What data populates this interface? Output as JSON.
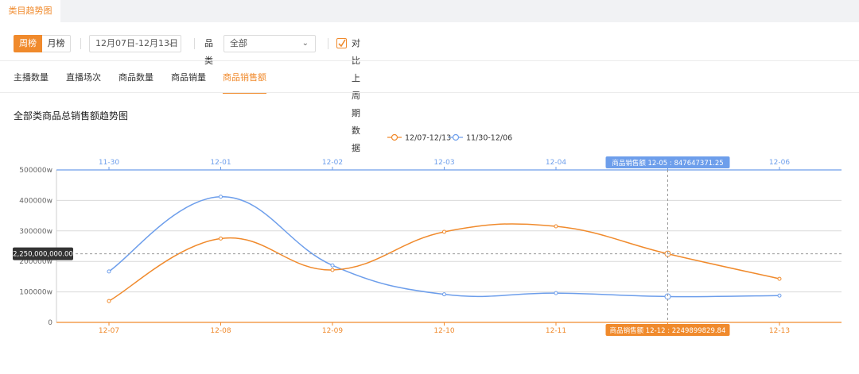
{
  "tabbar": {
    "active_tab": "类目趋势图"
  },
  "controls": {
    "week_label": "周榜",
    "month_label": "月榜",
    "date_range": "12月07日-12月13日",
    "category_label": "品类",
    "category_value": "全部",
    "compare_label": "对比上周期数据",
    "compare_checked": true
  },
  "metric_tabs": [
    {
      "label": "主播数量",
      "active": false
    },
    {
      "label": "直播场次",
      "active": false
    },
    {
      "label": "商品数量",
      "active": false
    },
    {
      "label": "商品销量",
      "active": false
    },
    {
      "label": "商品销售额",
      "active": true
    }
  ],
  "chart_data": {
    "type": "line",
    "title": "全部类商品总销售额趋势图",
    "ylim": [
      0,
      500000
    ],
    "yticks": [
      "0",
      "100000w",
      "200000w",
      "300000w",
      "400000w",
      "500000w"
    ],
    "x_bottom": [
      "12-07",
      "12-08",
      "12-09",
      "12-10",
      "12-11",
      "12-12",
      "12-13"
    ],
    "x_top": [
      "11-30",
      "12-01",
      "12-02",
      "12-03",
      "12-04",
      "12-05",
      "12-06"
    ],
    "series": [
      {
        "name": "12/07-12/13",
        "color": "#f08a2c",
        "axis": "bottom",
        "values": [
          70000,
          275000,
          172000,
          297000,
          315000,
          224990,
          143000
        ]
      },
      {
        "name": "11/30-12/06",
        "color": "#6d9eeb",
        "axis": "top",
        "values": [
          167000,
          412000,
          187000,
          92000,
          96000,
          84765,
          88000
        ]
      }
    ],
    "crosshair": {
      "index": 5,
      "y_readout": "2,250,000,000.00"
    },
    "tooltips": {
      "top": {
        "label": "商品销售额",
        "x": "12-05",
        "value": "847647371.25"
      },
      "bottom": {
        "label": "商品销售额",
        "x": "12-12",
        "value": "2249899829.84"
      }
    },
    "legend_position": "top-center",
    "grid": true
  }
}
